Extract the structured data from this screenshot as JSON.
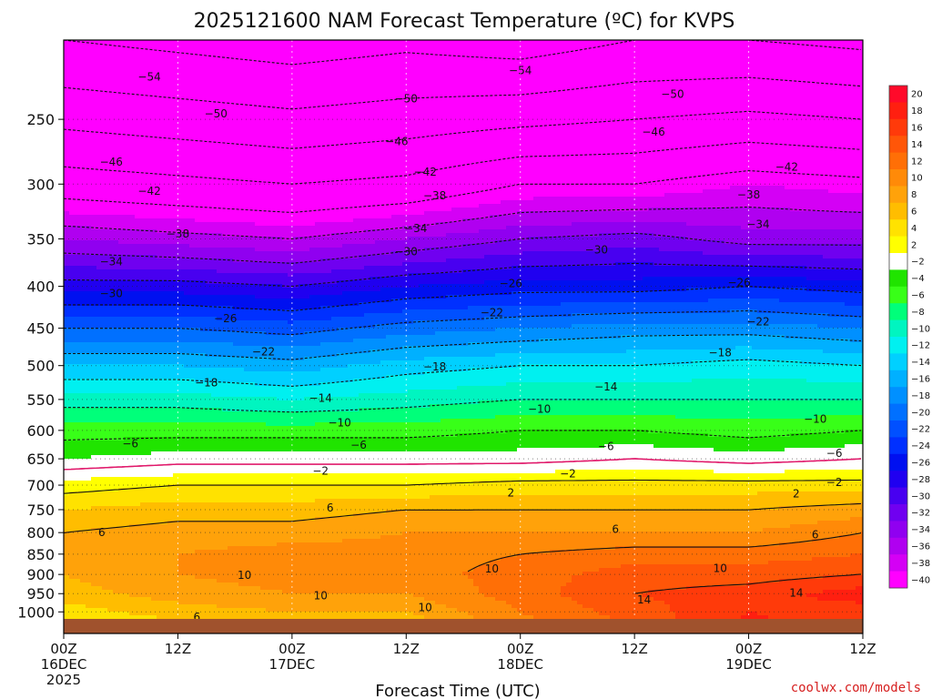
{
  "chart_data": {
    "type": "heatmap",
    "title": "2025121600 NAM Forecast Temperature (ºC) for KVPS",
    "xlabel": "Forecast Time (UTC)",
    "ylabel": "",
    "credit": "coolwx.com/models",
    "x_ticks": [
      {
        "hours": 0,
        "lines": [
          "00Z",
          "16DEC",
          "2025"
        ]
      },
      {
        "hours": 12,
        "lines": [
          "12Z"
        ]
      },
      {
        "hours": 24,
        "lines": [
          "00Z",
          "17DEC"
        ]
      },
      {
        "hours": 36,
        "lines": [
          "12Z"
        ]
      },
      {
        "hours": 48,
        "lines": [
          "00Z",
          "18DEC"
        ]
      },
      {
        "hours": 60,
        "lines": [
          "12Z"
        ]
      },
      {
        "hours": 72,
        "lines": [
          "00Z",
          "19DEC"
        ]
      },
      {
        "hours": 84,
        "lines": [
          "12Z"
        ]
      }
    ],
    "xlim_hours": [
      0,
      84
    ],
    "y_scale": "log",
    "y_unit": "hPa",
    "y_ticks": [
      250,
      300,
      350,
      400,
      450,
      500,
      550,
      600,
      650,
      700,
      750,
      800,
      850,
      900,
      950,
      1000
    ],
    "ylim": [
      200,
      1020
    ],
    "grid": true,
    "colorbar_labels": [
      "20",
      "18",
      "16",
      "14",
      "12",
      "10",
      "8",
      "6",
      "4",
      "2",
      "-2",
      "-4",
      "-6",
      "-8",
      "-10",
      "-12",
      "-14",
      "-16",
      "-18",
      "-20",
      "-22",
      "-24",
      "-26",
      "-28",
      "-30",
      "-32",
      "-34",
      "-36",
      "-38",
      "-40"
    ],
    "colorbar_colors": [
      "#ff0a2a",
      "#ff1f10",
      "#ff3a0a",
      "#ff5608",
      "#ff6f06",
      "#ff8a08",
      "#ffa20a",
      "#ffbd00",
      "#ffe200",
      "#ffff00",
      "#ffffff",
      "#20e400",
      "#38ff18",
      "#00ff7a",
      "#00f5c0",
      "#00f0f0",
      "#00d0ff",
      "#00b0ff",
      "#0090ff",
      "#0070ff",
      "#0050ff",
      "#0030ff",
      "#0010f0",
      "#2000f0",
      "#4800f0",
      "#7000f0",
      "#9000f0",
      "#b000f0",
      "#d400f5",
      "#ff00ff"
    ],
    "contour_interval": 4,
    "freezing_line_color": "#e0186a",
    "profile_hours": [
      0,
      12,
      24,
      36,
      48,
      60,
      72,
      84
    ],
    "profile_pressures": [
      250,
      300,
      350,
      400,
      450,
      500,
      550,
      600,
      650,
      700,
      750,
      800,
      850,
      900,
      950,
      1000
    ],
    "temperature_profiles": [
      [
        -49,
        -42,
        -34,
        -27,
        -20,
        -14,
        -9,
        -5,
        -2,
        3,
        6,
        8,
        9,
        8,
        7,
        5
      ],
      [
        -50,
        -43,
        -35,
        -27,
        -20,
        -14,
        -9,
        -5,
        -1,
        4,
        7,
        9,
        10,
        10,
        9,
        7
      ],
      [
        -51,
        -44,
        -36,
        -28,
        -21,
        -15,
        -10,
        -5,
        -1,
        4,
        7,
        9,
        11,
        11,
        10,
        8
      ],
      [
        -50,
        -43,
        -34,
        -26,
        -19,
        -13,
        -9,
        -5,
        -1,
        4,
        8,
        10,
        11,
        11,
        10,
        8
      ],
      [
        -49,
        -40,
        -32,
        -25,
        -18,
        -12,
        -8,
        -4,
        -1,
        5,
        8,
        10,
        12,
        13,
        13,
        12
      ],
      [
        -48,
        -40,
        -31,
        -25,
        -17,
        -12,
        -8,
        -4,
        0,
        5,
        8,
        10,
        13,
        15,
        16,
        15
      ],
      [
        -47,
        -38,
        -33,
        -24,
        -17,
        -11,
        -8,
        -5,
        -1,
        5,
        8,
        10,
        13,
        15,
        17,
        18
      ],
      [
        -48,
        -39,
        -33,
        -25,
        -18,
        -12,
        -8,
        -4,
        0,
        5,
        9,
        12,
        14,
        16,
        19,
        17
      ]
    ],
    "contour_labels": [
      {
        "text": "-54",
        "hours": 9,
        "pressure": 222
      },
      {
        "text": "-54",
        "hours": 48,
        "pressure": 218
      },
      {
        "text": "-50",
        "hours": 16,
        "pressure": 246
      },
      {
        "text": "-50",
        "hours": 36,
        "pressure": 236
      },
      {
        "text": "-50",
        "hours": 64,
        "pressure": 233
      },
      {
        "text": "-46",
        "hours": 5,
        "pressure": 282
      },
      {
        "text": "-46",
        "hours": 35,
        "pressure": 266
      },
      {
        "text": "-46",
        "hours": 62,
        "pressure": 259
      },
      {
        "text": "-42",
        "hours": 9,
        "pressure": 306
      },
      {
        "text": "-42",
        "hours": 38,
        "pressure": 290
      },
      {
        "text": "-42",
        "hours": 76,
        "pressure": 286
      },
      {
        "text": "-38",
        "hours": 12,
        "pressure": 345
      },
      {
        "text": "-38",
        "hours": 39,
        "pressure": 310
      },
      {
        "text": "-38",
        "hours": 72,
        "pressure": 309
      },
      {
        "text": "-34",
        "hours": 5,
        "pressure": 373
      },
      {
        "text": "-34",
        "hours": 37,
        "pressure": 340
      },
      {
        "text": "-34",
        "hours": 73,
        "pressure": 336
      },
      {
        "text": "-30",
        "hours": 5,
        "pressure": 408
      },
      {
        "text": "-30",
        "hours": 36,
        "pressure": 363
      },
      {
        "text": "-30",
        "hours": 56,
        "pressure": 361
      },
      {
        "text": "-26",
        "hours": 17,
        "pressure": 438
      },
      {
        "text": "-26",
        "hours": 47,
        "pressure": 397
      },
      {
        "text": "-26",
        "hours": 71,
        "pressure": 396
      },
      {
        "text": "-22",
        "hours": 21,
        "pressure": 481
      },
      {
        "text": "-22",
        "hours": 45,
        "pressure": 431
      },
      {
        "text": "-22",
        "hours": 73,
        "pressure": 442
      },
      {
        "text": "-18",
        "hours": 15,
        "pressure": 525
      },
      {
        "text": "-18",
        "hours": 39,
        "pressure": 502
      },
      {
        "text": "-18",
        "hours": 69,
        "pressure": 482
      },
      {
        "text": "-14",
        "hours": 27,
        "pressure": 548
      },
      {
        "text": "-14",
        "hours": 57,
        "pressure": 531
      },
      {
        "text": "-10",
        "hours": 29,
        "pressure": 587
      },
      {
        "text": "-10",
        "hours": 50,
        "pressure": 565
      },
      {
        "text": "-10",
        "hours": 79,
        "pressure": 581
      },
      {
        "text": "-6",
        "hours": 7,
        "pressure": 623
      },
      {
        "text": "-6",
        "hours": 31,
        "pressure": 625
      },
      {
        "text": "-6",
        "hours": 57,
        "pressure": 628
      },
      {
        "text": "-6",
        "hours": 81,
        "pressure": 640
      },
      {
        "text": "-2",
        "hours": 27,
        "pressure": 673
      },
      {
        "text": "-2",
        "hours": 53,
        "pressure": 678
      },
      {
        "text": "-2",
        "hours": 81,
        "pressure": 695
      },
      {
        "text": "2",
        "hours": 47,
        "pressure": 715
      },
      {
        "text": "2",
        "hours": 77,
        "pressure": 717
      },
      {
        "text": "6",
        "hours": 28,
        "pressure": 746
      },
      {
        "text": "6",
        "hours": 4,
        "pressure": 800
      },
      {
        "text": "6",
        "hours": 58,
        "pressure": 793
      },
      {
        "text": "6",
        "hours": 79,
        "pressure": 805
      },
      {
        "text": "10",
        "hours": 19,
        "pressure": 902
      },
      {
        "text": "10",
        "hours": 45,
        "pressure": 886
      },
      {
        "text": "10",
        "hours": 69,
        "pressure": 885
      },
      {
        "text": "10",
        "hours": 27,
        "pressure": 956
      },
      {
        "text": "10",
        "hours": 38,
        "pressure": 988
      },
      {
        "text": "14",
        "hours": 61,
        "pressure": 966
      },
      {
        "text": "14",
        "hours": 77,
        "pressure": 948
      },
      {
        "text": "6",
        "hours": 14,
        "pressure": 1048
      }
    ]
  }
}
